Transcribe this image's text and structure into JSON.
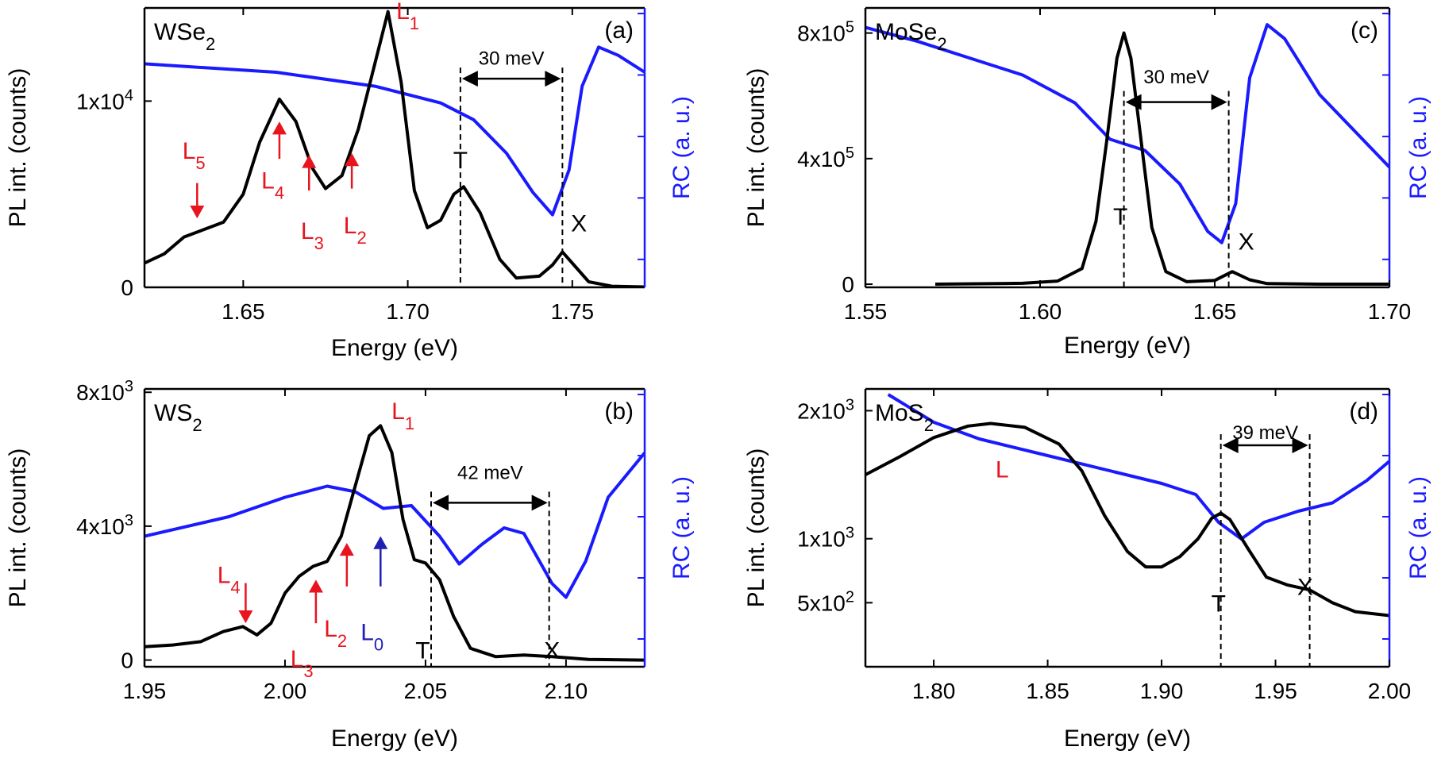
{
  "chart_data": [
    {
      "id": "a",
      "type": "line",
      "panel_label": "(a)",
      "material": {
        "base": "WSe",
        "sub": "2"
      },
      "xlabel": "Energy  (eV)",
      "ylabel": "PL int. (counts)",
      "y2label": "RC (a. u.)",
      "xlim": [
        1.62,
        1.772
      ],
      "ylim": [
        0,
        15000
      ],
      "xticks": [
        1.65,
        1.7,
        1.75
      ],
      "xtick_labels": [
        "1.65",
        "1.70",
        "1.75"
      ],
      "yticks": [
        0,
        10000
      ],
      "ytick_labels": [
        {
          "base": "0",
          "sup": ""
        },
        {
          "base": "1x10",
          "sup": "4"
        }
      ],
      "y2ticks_frac": [
        0.1,
        0.32,
        0.54,
        0.76,
        0.98
      ],
      "rc_frac": [
        [
          1.62,
          0.8
        ],
        [
          1.66,
          0.77
        ],
        [
          1.69,
          0.72
        ],
        [
          1.71,
          0.66
        ],
        [
          1.72,
          0.6
        ],
        [
          1.73,
          0.48
        ],
        [
          1.738,
          0.34
        ],
        [
          1.744,
          0.26
        ],
        [
          1.749,
          0.42
        ],
        [
          1.753,
          0.72
        ],
        [
          1.758,
          0.86
        ],
        [
          1.764,
          0.83
        ],
        [
          1.772,
          0.77
        ]
      ],
      "series": [
        {
          "color": "#000000",
          "points": [
            [
              1.62,
              1300
            ],
            [
              1.626,
              1800
            ],
            [
              1.632,
              2700
            ],
            [
              1.638,
              3100
            ],
            [
              1.644,
              3500
            ],
            [
              1.65,
              5000
            ],
            [
              1.655,
              7800
            ],
            [
              1.661,
              10100
            ],
            [
              1.666,
              8900
            ],
            [
              1.671,
              6400
            ],
            [
              1.675,
              5300
            ],
            [
              1.68,
              6000
            ],
            [
              1.685,
              8500
            ],
            [
              1.69,
              12000
            ],
            [
              1.694,
              14800
            ],
            [
              1.698,
              11000
            ],
            [
              1.702,
              5200
            ],
            [
              1.706,
              3200
            ],
            [
              1.71,
              3600
            ],
            [
              1.714,
              5000
            ],
            [
              1.717,
              5400
            ],
            [
              1.722,
              4000
            ],
            [
              1.728,
              1500
            ],
            [
              1.733,
              500
            ],
            [
              1.74,
              600
            ],
            [
              1.744,
              1200
            ],
            [
              1.747,
              1900
            ],
            [
              1.75,
              1300
            ],
            [
              1.755,
              300
            ],
            [
              1.762,
              60
            ],
            [
              1.772,
              20
            ]
          ]
        }
      ],
      "peak_labels": [
        {
          "text": "T",
          "x": 1.716,
          "y": 6400
        },
        {
          "text": "X",
          "x": 1.752,
          "y": 3000
        }
      ],
      "red_labels": [
        {
          "base": "L",
          "sub": "1",
          "x": 1.7,
          "y": 14400
        },
        {
          "base": "L",
          "sub": "2",
          "x": 1.684,
          "y": 2900
        },
        {
          "base": "L",
          "sub": "3",
          "x": 1.671,
          "y": 2600
        },
        {
          "base": "L",
          "sub": "4",
          "x": 1.659,
          "y": 5300
        },
        {
          "base": "L",
          "sub": "5",
          "x": 1.635,
          "y": 6900
        }
      ],
      "arrows": [
        {
          "x": 1.661,
          "y_from": 6900,
          "y_to": 8900,
          "dir": "up",
          "color": "#e8141e"
        },
        {
          "x": 1.67,
          "y_from": 5200,
          "y_to": 7100,
          "dir": "up",
          "color": "#e8141e"
        },
        {
          "x": 1.683,
          "y_from": 5300,
          "y_to": 7200,
          "dir": "up",
          "color": "#e8141e"
        },
        {
          "x": 1.636,
          "y_from": 5600,
          "y_to": 3700,
          "dir": "down",
          "color": "#e8141e"
        }
      ],
      "vlines": [
        1.716,
        1.747
      ],
      "span": {
        "x1": 1.716,
        "x2": 1.747,
        "y": 11200,
        "label": "30 meV",
        "label_y": 12300
      }
    },
    {
      "id": "b",
      "type": "line",
      "panel_label": "(b)",
      "material": {
        "base": "WS",
        "sub": "2"
      },
      "xlabel": "Energy (eV)",
      "ylabel": "PL int. (counts)",
      "y2label": "RC (a. u.)",
      "xlim": [
        1.95,
        2.128
      ],
      "ylim": [
        -200,
        8100
      ],
      "xticks": [
        1.95,
        2.0,
        2.05,
        2.1
      ],
      "xtick_labels": [
        "1.95",
        "2.00",
        "2.05",
        "2.10"
      ],
      "yticks": [
        0,
        4000,
        8000
      ],
      "ytick_labels": [
        {
          "base": "0",
          "sup": ""
        },
        {
          "base": "4x10",
          "sup": "3"
        },
        {
          "base": "8x10",
          "sup": "3"
        }
      ],
      "y2ticks_frac": [
        0.1,
        0.32,
        0.54,
        0.76,
        0.98
      ],
      "rc_frac": [
        [
          1.95,
          0.47
        ],
        [
          1.98,
          0.54
        ],
        [
          2.0,
          0.61
        ],
        [
          2.015,
          0.65
        ],
        [
          2.025,
          0.63
        ],
        [
          2.035,
          0.57
        ],
        [
          2.045,
          0.58
        ],
        [
          2.055,
          0.47
        ],
        [
          2.062,
          0.37
        ],
        [
          2.07,
          0.44
        ],
        [
          2.078,
          0.5
        ],
        [
          2.085,
          0.48
        ],
        [
          2.095,
          0.3
        ],
        [
          2.1,
          0.25
        ],
        [
          2.107,
          0.38
        ],
        [
          2.115,
          0.61
        ],
        [
          2.128,
          0.77
        ]
      ],
      "series": [
        {
          "color": "#000000",
          "points": [
            [
              1.95,
              400
            ],
            [
              1.96,
              450
            ],
            [
              1.97,
              550
            ],
            [
              1.978,
              850
            ],
            [
              1.985,
              1000
            ],
            [
              1.99,
              750
            ],
            [
              1.995,
              1100
            ],
            [
              2.0,
              2000
            ],
            [
              2.005,
              2500
            ],
            [
              2.01,
              2800
            ],
            [
              2.015,
              2950
            ],
            [
              2.02,
              3700
            ],
            [
              2.025,
              5200
            ],
            [
              2.03,
              6700
            ],
            [
              2.034,
              7000
            ],
            [
              2.038,
              6200
            ],
            [
              2.042,
              4200
            ],
            [
              2.046,
              3000
            ],
            [
              2.05,
              2900
            ],
            [
              2.055,
              2400
            ],
            [
              2.06,
              1300
            ],
            [
              2.066,
              350
            ],
            [
              2.075,
              100
            ],
            [
              2.085,
              150
            ],
            [
              2.095,
              100
            ],
            [
              2.108,
              20
            ],
            [
              2.128,
              0
            ]
          ]
        }
      ],
      "peak_labels": [
        {
          "text": "T",
          "x": 2.049,
          "y": 50
        },
        {
          "text": "X",
          "x": 2.095,
          "y": 50
        }
      ],
      "red_labels": [
        {
          "base": "L",
          "sub": "1",
          "x": 2.042,
          "y": 7200
        },
        {
          "base": "L",
          "sub": "2",
          "x": 2.018,
          "y": 700
        },
        {
          "base": "L",
          "sub": "3",
          "x": 2.006,
          "y": -200
        },
        {
          "base": "L",
          "sub": "4",
          "x": 1.98,
          "y": 2300
        }
      ],
      "blue_labels": [
        {
          "base": "L",
          "sub": "0",
          "x": 2.031,
          "y": 600
        }
      ],
      "arrows": [
        {
          "x": 2.022,
          "y_from": 2200,
          "y_to": 3500,
          "dir": "up",
          "color": "#e8141e"
        },
        {
          "x": 2.011,
          "y_from": 1100,
          "y_to": 2400,
          "dir": "up",
          "color": "#e8141e"
        },
        {
          "x": 1.986,
          "y_from": 2300,
          "y_to": 1100,
          "dir": "down",
          "color": "#e8141e"
        },
        {
          "x": 2.034,
          "y_from": 2200,
          "y_to": 3700,
          "dir": "up",
          "color": "#1f1fb4"
        }
      ],
      "vlines": [
        2.052,
        2.094
      ],
      "span": {
        "x1": 2.052,
        "x2": 2.094,
        "y": 4700,
        "label": "42 meV",
        "label_y": 5600
      }
    },
    {
      "id": "c",
      "type": "line",
      "panel_label": "(c)",
      "material": {
        "base": "MoSe",
        "sub": "2"
      },
      "xlabel": "Energy (eV)",
      "ylabel": "PL int. (counts)",
      "y2label": "RC (a. u.)",
      "xlim": [
        1.55,
        1.7
      ],
      "ylim": [
        -10000,
        880000
      ],
      "xticks": [
        1.55,
        1.6,
        1.65,
        1.7
      ],
      "xtick_labels": [
        "1.55",
        "1.60",
        "1.65",
        "1.70"
      ],
      "yticks": [
        0,
        400000,
        800000
      ],
      "ytick_labels": [
        {
          "base": "0",
          "sup": ""
        },
        {
          "base": "4x10",
          "sup": "5"
        },
        {
          "base": "8x10",
          "sup": "5"
        }
      ],
      "y2ticks_frac": [
        0.1,
        0.32,
        0.54,
        0.76,
        0.98
      ],
      "rc_frac": [
        [
          1.55,
          0.93
        ],
        [
          1.565,
          0.88
        ],
        [
          1.58,
          0.82
        ],
        [
          1.595,
          0.76
        ],
        [
          1.61,
          0.66
        ],
        [
          1.62,
          0.53
        ],
        [
          1.625,
          0.51
        ],
        [
          1.63,
          0.49
        ],
        [
          1.64,
          0.37
        ],
        [
          1.648,
          0.2
        ],
        [
          1.652,
          0.16
        ],
        [
          1.656,
          0.3
        ],
        [
          1.66,
          0.75
        ],
        [
          1.665,
          0.94
        ],
        [
          1.67,
          0.89
        ],
        [
          1.68,
          0.69
        ],
        [
          1.69,
          0.56
        ],
        [
          1.7,
          0.43
        ]
      ],
      "series": [
        {
          "color": "#000000",
          "points": [
            [
              1.57,
              0
            ],
            [
              1.595,
              3000
            ],
            [
              1.605,
              10000
            ],
            [
              1.612,
              50000
            ],
            [
              1.616,
              200000
            ],
            [
              1.619,
              450000
            ],
            [
              1.622,
              720000
            ],
            [
              1.624,
              800000
            ],
            [
              1.626,
              720000
            ],
            [
              1.629,
              450000
            ],
            [
              1.632,
              180000
            ],
            [
              1.636,
              40000
            ],
            [
              1.642,
              8000
            ],
            [
              1.65,
              12000
            ],
            [
              1.655,
              40000
            ],
            [
              1.66,
              14000
            ],
            [
              1.665,
              2000
            ],
            [
              1.68,
              0
            ],
            [
              1.7,
              0
            ]
          ]
        }
      ],
      "peak_labels": [
        {
          "text": "T",
          "x": 1.623,
          "y": 190000
        },
        {
          "text": "X",
          "x": 1.659,
          "y": 110000
        }
      ],
      "red_labels": [],
      "arrows": [],
      "vlines": [
        1.624,
        1.654
      ],
      "span": {
        "x1": 1.624,
        "x2": 1.654,
        "y": 580000,
        "label": "30 meV",
        "label_y": 660000
      }
    },
    {
      "id": "d",
      "type": "line",
      "panel_label": "(d)",
      "material": {
        "base": "MoS",
        "sub": "2"
      },
      "xlabel": "Energy (eV)",
      "ylabel": "PL int. (counts)",
      "y2label": "RC (a. u.)",
      "xlim": [
        1.77,
        2.0
      ],
      "ylim": [
        0,
        2170
      ],
      "xticks": [
        1.8,
        1.85,
        1.9,
        1.95,
        2.0
      ],
      "xtick_labels": [
        "1.80",
        "1.85",
        "1.90",
        "1.95",
        "2.00"
      ],
      "yticks": [
        500,
        1000,
        2000
      ],
      "ytick_labels": [
        {
          "base": "5x10",
          "sup": "2"
        },
        {
          "base": "1x10",
          "sup": "3"
        },
        {
          "base": "2x10",
          "sup": "3"
        }
      ],
      "y2ticks_frac": [
        0.1,
        0.32,
        0.54,
        0.76,
        0.98
      ],
      "rc_frac": [
        [
          1.78,
          0.98
        ],
        [
          1.8,
          0.88
        ],
        [
          1.82,
          0.82
        ],
        [
          1.85,
          0.76
        ],
        [
          1.88,
          0.7
        ],
        [
          1.9,
          0.66
        ],
        [
          1.915,
          0.62
        ],
        [
          1.925,
          0.52
        ],
        [
          1.935,
          0.46
        ],
        [
          1.945,
          0.52
        ],
        [
          1.96,
          0.56
        ],
        [
          1.975,
          0.59
        ],
        [
          1.99,
          0.67
        ],
        [
          2.0,
          0.74
        ]
      ],
      "series": [
        {
          "color": "#000000",
          "points": [
            [
              1.77,
              1500
            ],
            [
              1.785,
              1640
            ],
            [
              1.8,
              1790
            ],
            [
              1.815,
              1880
            ],
            [
              1.825,
              1900
            ],
            [
              1.84,
              1870
            ],
            [
              1.855,
              1740
            ],
            [
              1.865,
              1530
            ],
            [
              1.875,
              1180
            ],
            [
              1.885,
              900
            ],
            [
              1.893,
              780
            ],
            [
              1.9,
              780
            ],
            [
              1.908,
              860
            ],
            [
              1.916,
              1000
            ],
            [
              1.922,
              1160
            ],
            [
              1.926,
              1200
            ],
            [
              1.93,
              1150
            ],
            [
              1.938,
              920
            ],
            [
              1.946,
              700
            ],
            [
              1.955,
              640
            ],
            [
              1.965,
              600
            ],
            [
              1.975,
              500
            ],
            [
              1.985,
              430
            ],
            [
              2.0,
              400
            ]
          ]
        }
      ],
      "peak_labels": [
        {
          "text": "T",
          "x": 1.925,
          "y": 430
        },
        {
          "text": "X",
          "x": 1.963,
          "y": 560
        }
      ],
      "red_labels": [
        {
          "base": "L",
          "sub": "",
          "x": 1.83,
          "y": 1480
        }
      ],
      "arrows": [],
      "vlines": [
        1.926,
        1.965
      ],
      "span": {
        "x1": 1.926,
        "x2": 1.965,
        "y": 1730,
        "label": "39 meV",
        "label_y": 1830
      }
    }
  ]
}
